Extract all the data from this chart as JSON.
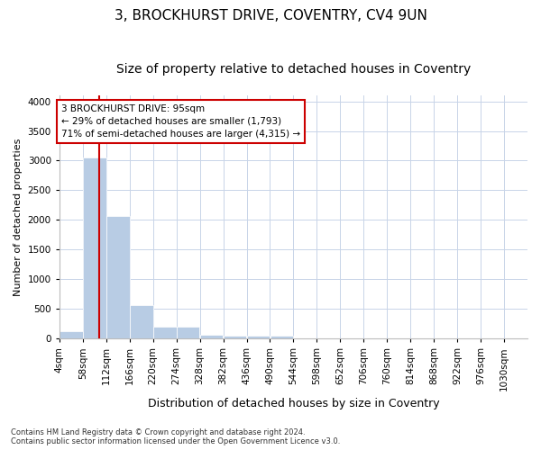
{
  "title_line1": "3, BROCKHURST DRIVE, COVENTRY, CV4 9UN",
  "title_line2": "Size of property relative to detached houses in Coventry",
  "xlabel": "Distribution of detached houses by size in Coventry",
  "ylabel": "Number of detached properties",
  "footnote1": "Contains HM Land Registry data © Crown copyright and database right 2024.",
  "footnote2": "Contains public sector information licensed under the Open Government Licence v3.0.",
  "bar_edges": [
    4,
    58,
    112,
    166,
    220,
    274,
    328,
    382,
    436,
    490,
    544,
    598,
    652,
    706,
    760,
    814,
    868,
    922,
    976,
    1030,
    1084
  ],
  "bar_heights": [
    130,
    3060,
    2060,
    560,
    200,
    200,
    70,
    55,
    45,
    45,
    0,
    0,
    0,
    0,
    0,
    0,
    0,
    0,
    0,
    0
  ],
  "bar_color": "#b8cce4",
  "bar_edgecolor": "#ffffff",
  "grid_color": "#c8d4e8",
  "property_sqm": 95,
  "red_line_color": "#cc0000",
  "annotation_text": "3 BROCKHURST DRIVE: 95sqm\n← 29% of detached houses are smaller (1,793)\n71% of semi-detached houses are larger (4,315) →",
  "annotation_box_edgecolor": "#cc0000",
  "annotation_box_facecolor": "#ffffff",
  "ylim": [
    0,
    4100
  ],
  "yticks": [
    0,
    500,
    1000,
    1500,
    2000,
    2500,
    3000,
    3500,
    4000
  ],
  "bg_color": "#ffffff",
  "title1_fontsize": 11,
  "title2_fontsize": 10,
  "xlabel_fontsize": 9,
  "ylabel_fontsize": 8,
  "tick_fontsize": 7.5,
  "footnote_fontsize": 6
}
